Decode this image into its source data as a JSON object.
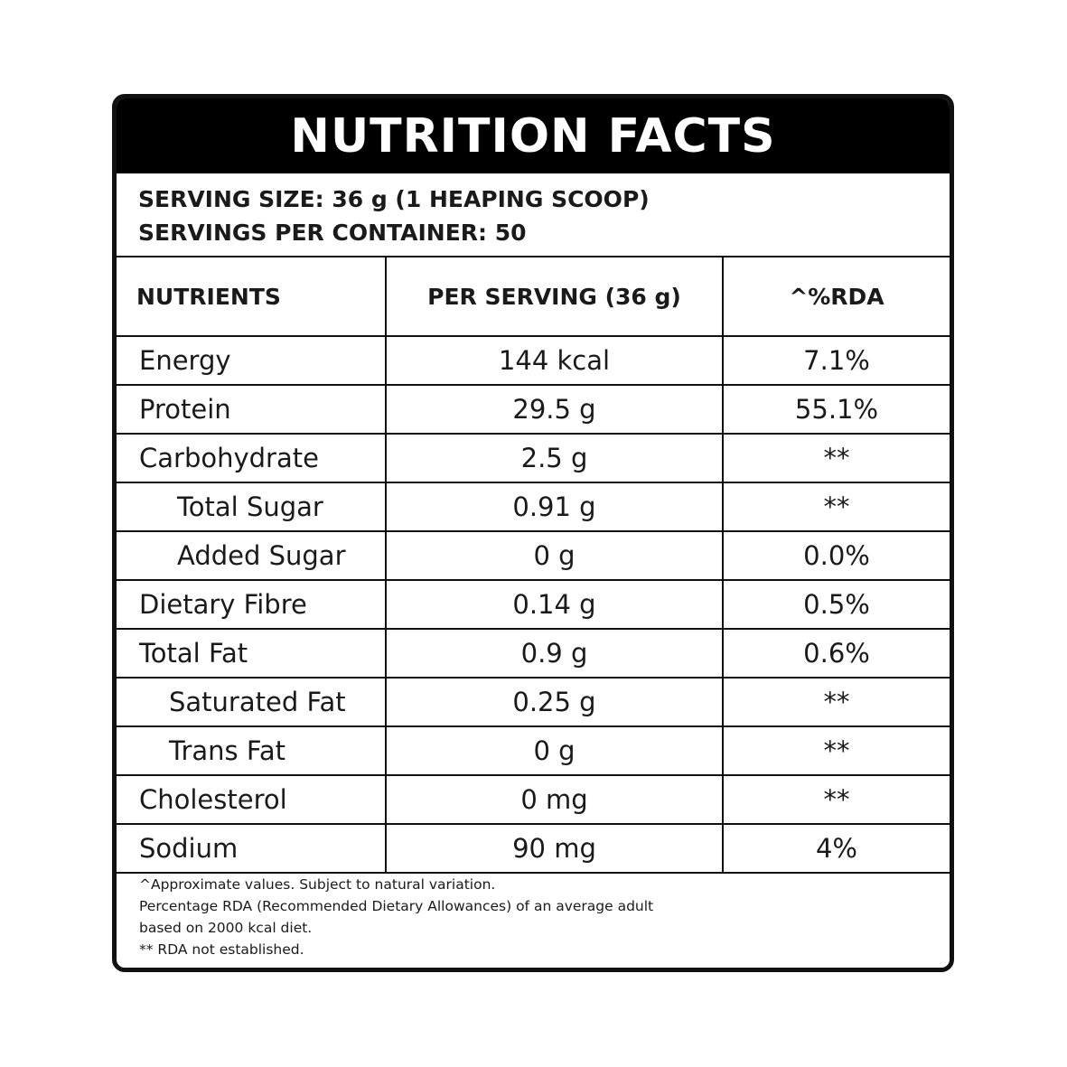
{
  "title": "NUTRITION FACTS",
  "serving": {
    "size": "SERVING SIZE: 36 g (1 HEAPING SCOOP)",
    "per_container": "SERVINGS PER CONTAINER: 50"
  },
  "table": {
    "headers": [
      "NUTRIENTS",
      "PER SERVING (36 g)",
      "^%RDA"
    ],
    "rows": [
      {
        "name": "Energy",
        "amount": "144 kcal",
        "rda": "7.1%"
      },
      {
        "name": "Protein",
        "amount": "29.5 g",
        "rda": "55.1%"
      },
      {
        "name": "Carbohydrate",
        "amount": "2.5 g",
        "rda": "**"
      },
      {
        "name": "Total Sugar",
        "amount": "0.91 g",
        "rda": "**"
      },
      {
        "name": "Added Sugar",
        "amount": "0 g",
        "rda": "0.0%"
      },
      {
        "name": "Dietary Fibre",
        "amount": "0.14 g",
        "rda": "0.5%"
      },
      {
        "name": "Total Fat",
        "amount": "0.9 g",
        "rda": "0.6%"
      },
      {
        "name": "Saturated Fat",
        "amount": "0.25 g",
        "rda": "**"
      },
      {
        "name": "Trans Fat",
        "amount": "0 g",
        "rda": "**"
      },
      {
        "name": "Cholesterol",
        "amount": "0 mg",
        "rda": "**"
      },
      {
        "name": "Sodium",
        "amount": "90 mg",
        "rda": "4%"
      }
    ]
  },
  "footnotes": [
    "^Approximate values. Subject to natural variation.",
    "Percentage RDA (Recommended Dietary Allowances) of an average adult",
    "based on 2000 kcal diet.",
    "** RDA not established."
  ]
}
